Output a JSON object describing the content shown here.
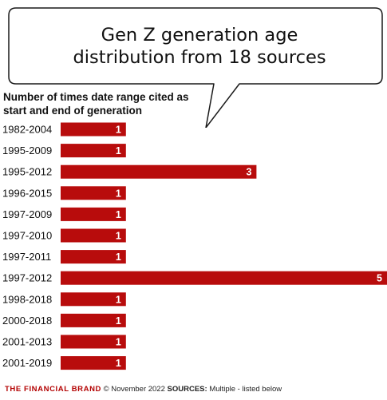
{
  "chart_data": {
    "type": "bar",
    "orientation": "horizontal",
    "title": "Gen Z generation age distribution from 18 sources",
    "subtitle": "Number of times date range cited as start and end of generation",
    "categories": [
      "1982-2004",
      "1995-2009",
      "1995-2012",
      "1996-2015",
      "1997-2009",
      "1997-2010",
      "1997-2011",
      "1997-2012",
      "1998-2018",
      "2000-2018",
      "2001-2013",
      "2001-2019"
    ],
    "values": [
      1,
      1,
      3,
      1,
      1,
      1,
      1,
      5,
      1,
      1,
      1,
      1
    ],
    "xlim": [
      0,
      5
    ],
    "grid": false,
    "data_labels": true,
    "bar_color": "#b80c0c",
    "label_color": "#ffffff"
  },
  "footer": {
    "brand": "THE FINANCIAL BRAND",
    "copyright": "© November 2022",
    "sources_label": "SOURCES:",
    "sources_text": "Multiple - listed below"
  }
}
